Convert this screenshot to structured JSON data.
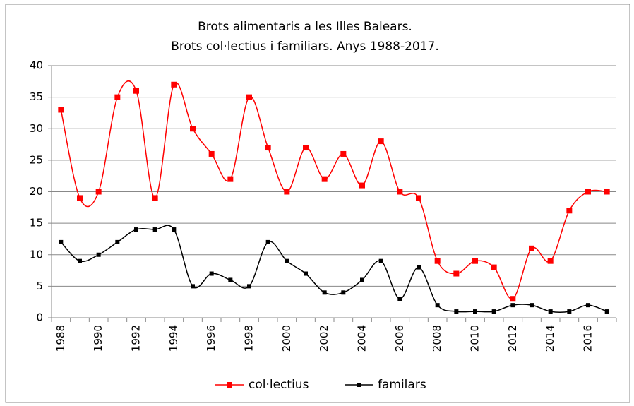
{
  "chart_data": {
    "type": "line",
    "title": [
      "Brots alimentaris  a les Illes Balears.",
      "Brots col·lectius  i familiars.   Anys 1988-2017."
    ],
    "categories": [
      "1988",
      null,
      "1990",
      null,
      "1992",
      null,
      "1994",
      null,
      "1996",
      null,
      "1998",
      null,
      "2000",
      null,
      "2002",
      null,
      "2004",
      null,
      "2006",
      null,
      "2008",
      null,
      "2010",
      null,
      "2012",
      null,
      "2014",
      null,
      "2016",
      null
    ],
    "series": [
      {
        "name": "col·lectius",
        "color": "#ff0000",
        "values": [
          33,
          19,
          20,
          35,
          36,
          19,
          37,
          30,
          26,
          22,
          35,
          27,
          20,
          27,
          22,
          26,
          21,
          28,
          20,
          19,
          9,
          7,
          9,
          8,
          3,
          11,
          9,
          17,
          20,
          20
        ]
      },
      {
        "name": "familars",
        "color": "#000000",
        "values": [
          12,
          9,
          10,
          12,
          14,
          14,
          14,
          5,
          7,
          6,
          5,
          12,
          9,
          7,
          4,
          4,
          6,
          9,
          3,
          8,
          2,
          1,
          1,
          1,
          2,
          2,
          1,
          1,
          2,
          1
        ]
      }
    ],
    "ylim": [
      0,
      40
    ],
    "yticks": [
      0,
      5,
      10,
      15,
      20,
      25,
      30,
      35,
      40
    ],
    "grid": true,
    "smooth": true,
    "marker": "square",
    "legend_position": "bottom"
  }
}
